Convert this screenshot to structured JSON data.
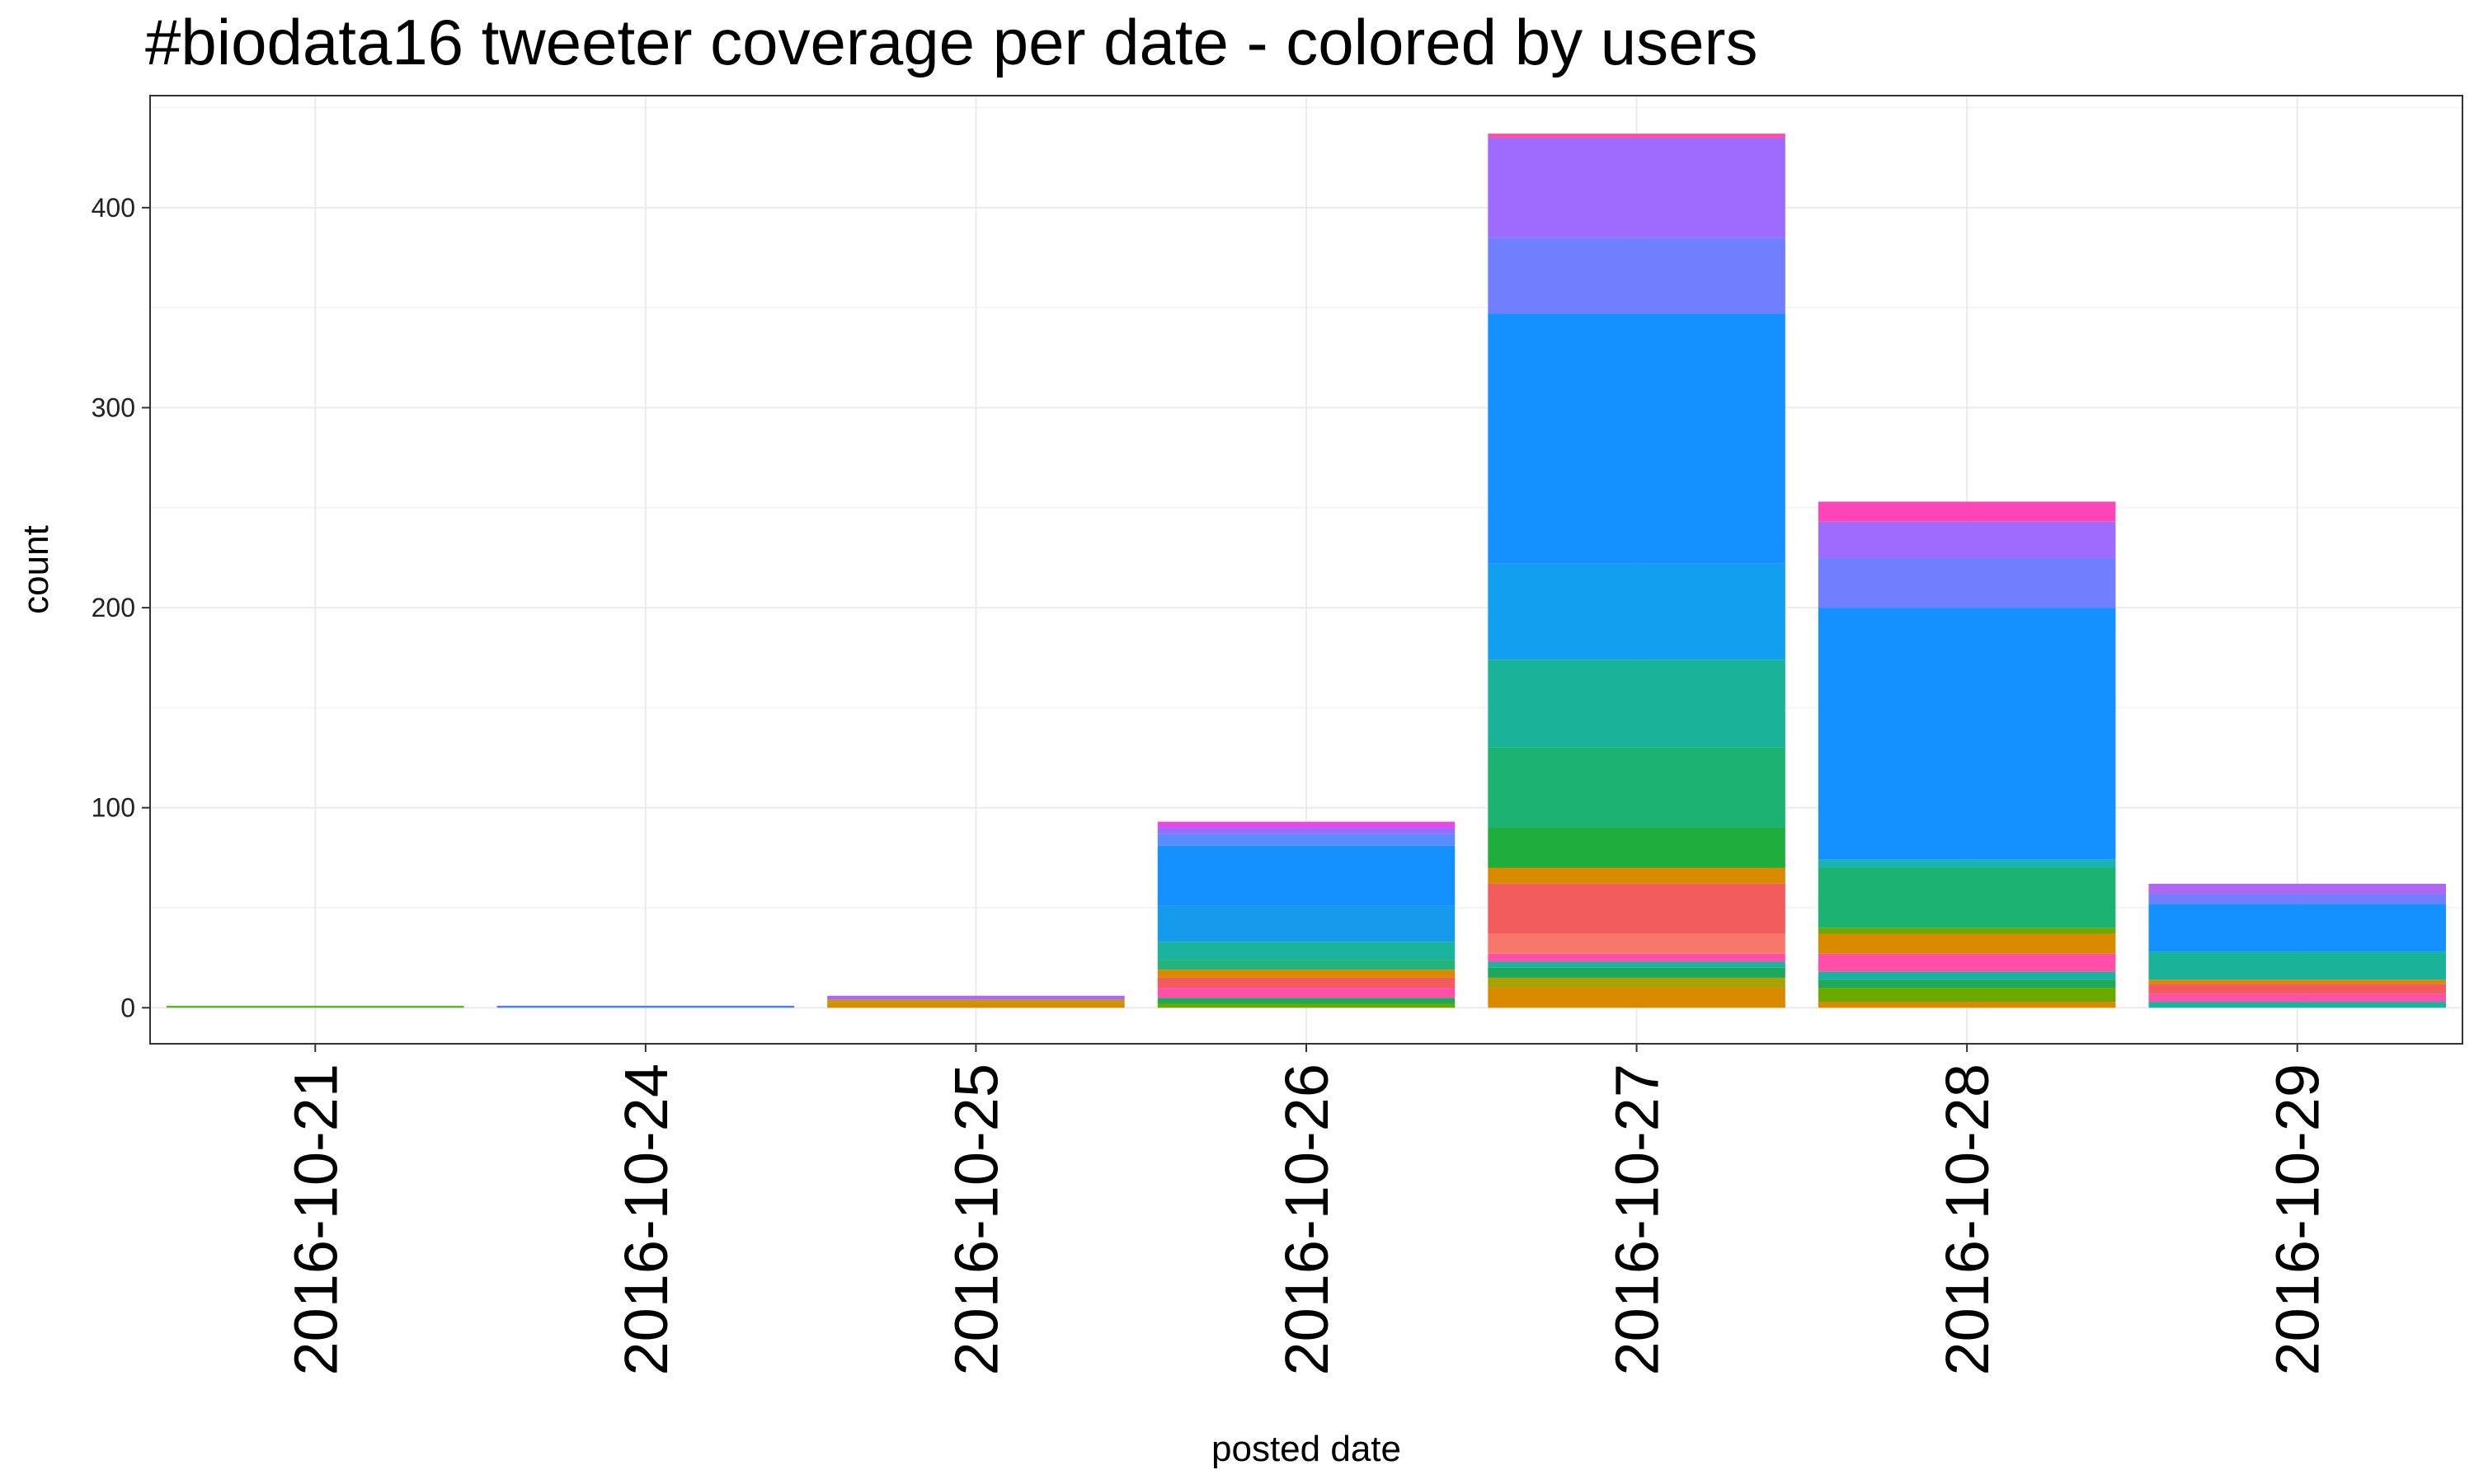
{
  "chart_data": {
    "type": "bar",
    "stacked": true,
    "title": "#biodata16 tweeter coverage per date - colored by users",
    "xlabel": "posted date",
    "ylabel": "count",
    "categories": [
      "2016-10-21",
      "2016-10-24",
      "2016-10-25",
      "2016-10-26",
      "2016-10-27",
      "2016-10-28",
      "2016-10-29"
    ],
    "yticks": [
      0,
      100,
      200,
      300,
      400
    ],
    "ylim": [
      -18,
      456
    ],
    "grid": true,
    "legend": "none",
    "bars": [
      {
        "category": "2016-10-21",
        "segments": [
          {
            "value": 1,
            "color": "#5fb130"
          }
        ]
      },
      {
        "category": "2016-10-24",
        "segments": [
          {
            "value": 1,
            "color": "#4a86ea"
          }
        ]
      },
      {
        "category": "2016-10-25",
        "segments": [
          {
            "value": 2,
            "color": "#d98a00"
          },
          {
            "value": 2,
            "color": "#c89a00"
          },
          {
            "value": 2,
            "color": "#b066f0"
          }
        ]
      },
      {
        "category": "2016-10-26",
        "segments": [
          {
            "value": 2,
            "color": "#6aaa00"
          },
          {
            "value": 3,
            "color": "#1fa85a"
          },
          {
            "value": 5,
            "color": "#ff4fa8"
          },
          {
            "value": 5,
            "color": "#f25c5c"
          },
          {
            "value": 4,
            "color": "#d98a00"
          },
          {
            "value": 5,
            "color": "#24b37a"
          },
          {
            "value": 9,
            "color": "#1ab3a0"
          },
          {
            "value": 18,
            "color": "#169bec"
          },
          {
            "value": 30,
            "color": "#1491ff"
          },
          {
            "value": 6,
            "color": "#5c8bff"
          },
          {
            "value": 3,
            "color": "#9b6cff"
          },
          {
            "value": 3,
            "color": "#e54ae6"
          }
        ]
      },
      {
        "category": "2016-10-27",
        "segments": [
          {
            "value": 10,
            "color": "#d98a00"
          },
          {
            "value": 5,
            "color": "#a9a200"
          },
          {
            "value": 5,
            "color": "#1fa85a"
          },
          {
            "value": 3,
            "color": "#1ab3a0"
          },
          {
            "value": 4,
            "color": "#ff4fa8"
          },
          {
            "value": 10,
            "color": "#f7786b"
          },
          {
            "value": 25,
            "color": "#f25c5c"
          },
          {
            "value": 8,
            "color": "#d98a00"
          },
          {
            "value": 20,
            "color": "#1fae3c"
          },
          {
            "value": 40,
            "color": "#1bb36f"
          },
          {
            "value": 44,
            "color": "#1ab39a"
          },
          {
            "value": 48,
            "color": "#139ff0"
          },
          {
            "value": 125,
            "color": "#1491ff"
          },
          {
            "value": 38,
            "color": "#717fff"
          },
          {
            "value": 50,
            "color": "#9f6bff"
          },
          {
            "value": 2,
            "color": "#ff4f9e"
          }
        ]
      },
      {
        "category": "2016-10-28",
        "segments": [
          {
            "value": 3,
            "color": "#d98a00"
          },
          {
            "value": 7,
            "color": "#6aaa00"
          },
          {
            "value": 4,
            "color": "#1fa85a"
          },
          {
            "value": 4,
            "color": "#1ab3a0"
          },
          {
            "value": 9,
            "color": "#ff4fa8"
          },
          {
            "value": 10,
            "color": "#d98a00"
          },
          {
            "value": 3,
            "color": "#6aaa00"
          },
          {
            "value": 30,
            "color": "#1bb36f"
          },
          {
            "value": 4,
            "color": "#1ab3b0"
          },
          {
            "value": 126,
            "color": "#1491ff"
          },
          {
            "value": 25,
            "color": "#717fff"
          },
          {
            "value": 18,
            "color": "#9f6bff"
          },
          {
            "value": 10,
            "color": "#ff45b8"
          }
        ]
      },
      {
        "category": "2016-10-29",
        "segments": [
          {
            "value": 3,
            "color": "#1ab3a0"
          },
          {
            "value": 4,
            "color": "#ff4fa8"
          },
          {
            "value": 5,
            "color": "#f25c5c"
          },
          {
            "value": 2,
            "color": "#d98a00"
          },
          {
            "value": 14,
            "color": "#1ab39a"
          },
          {
            "value": 24,
            "color": "#1491ff"
          },
          {
            "value": 5,
            "color": "#717fff"
          },
          {
            "value": 5,
            "color": "#b066f0"
          }
        ]
      }
    ]
  },
  "colors": {
    "panel_border": "#333333",
    "grid_major": "#ebebeb",
    "grid_minor": "#f5f5f5"
  }
}
